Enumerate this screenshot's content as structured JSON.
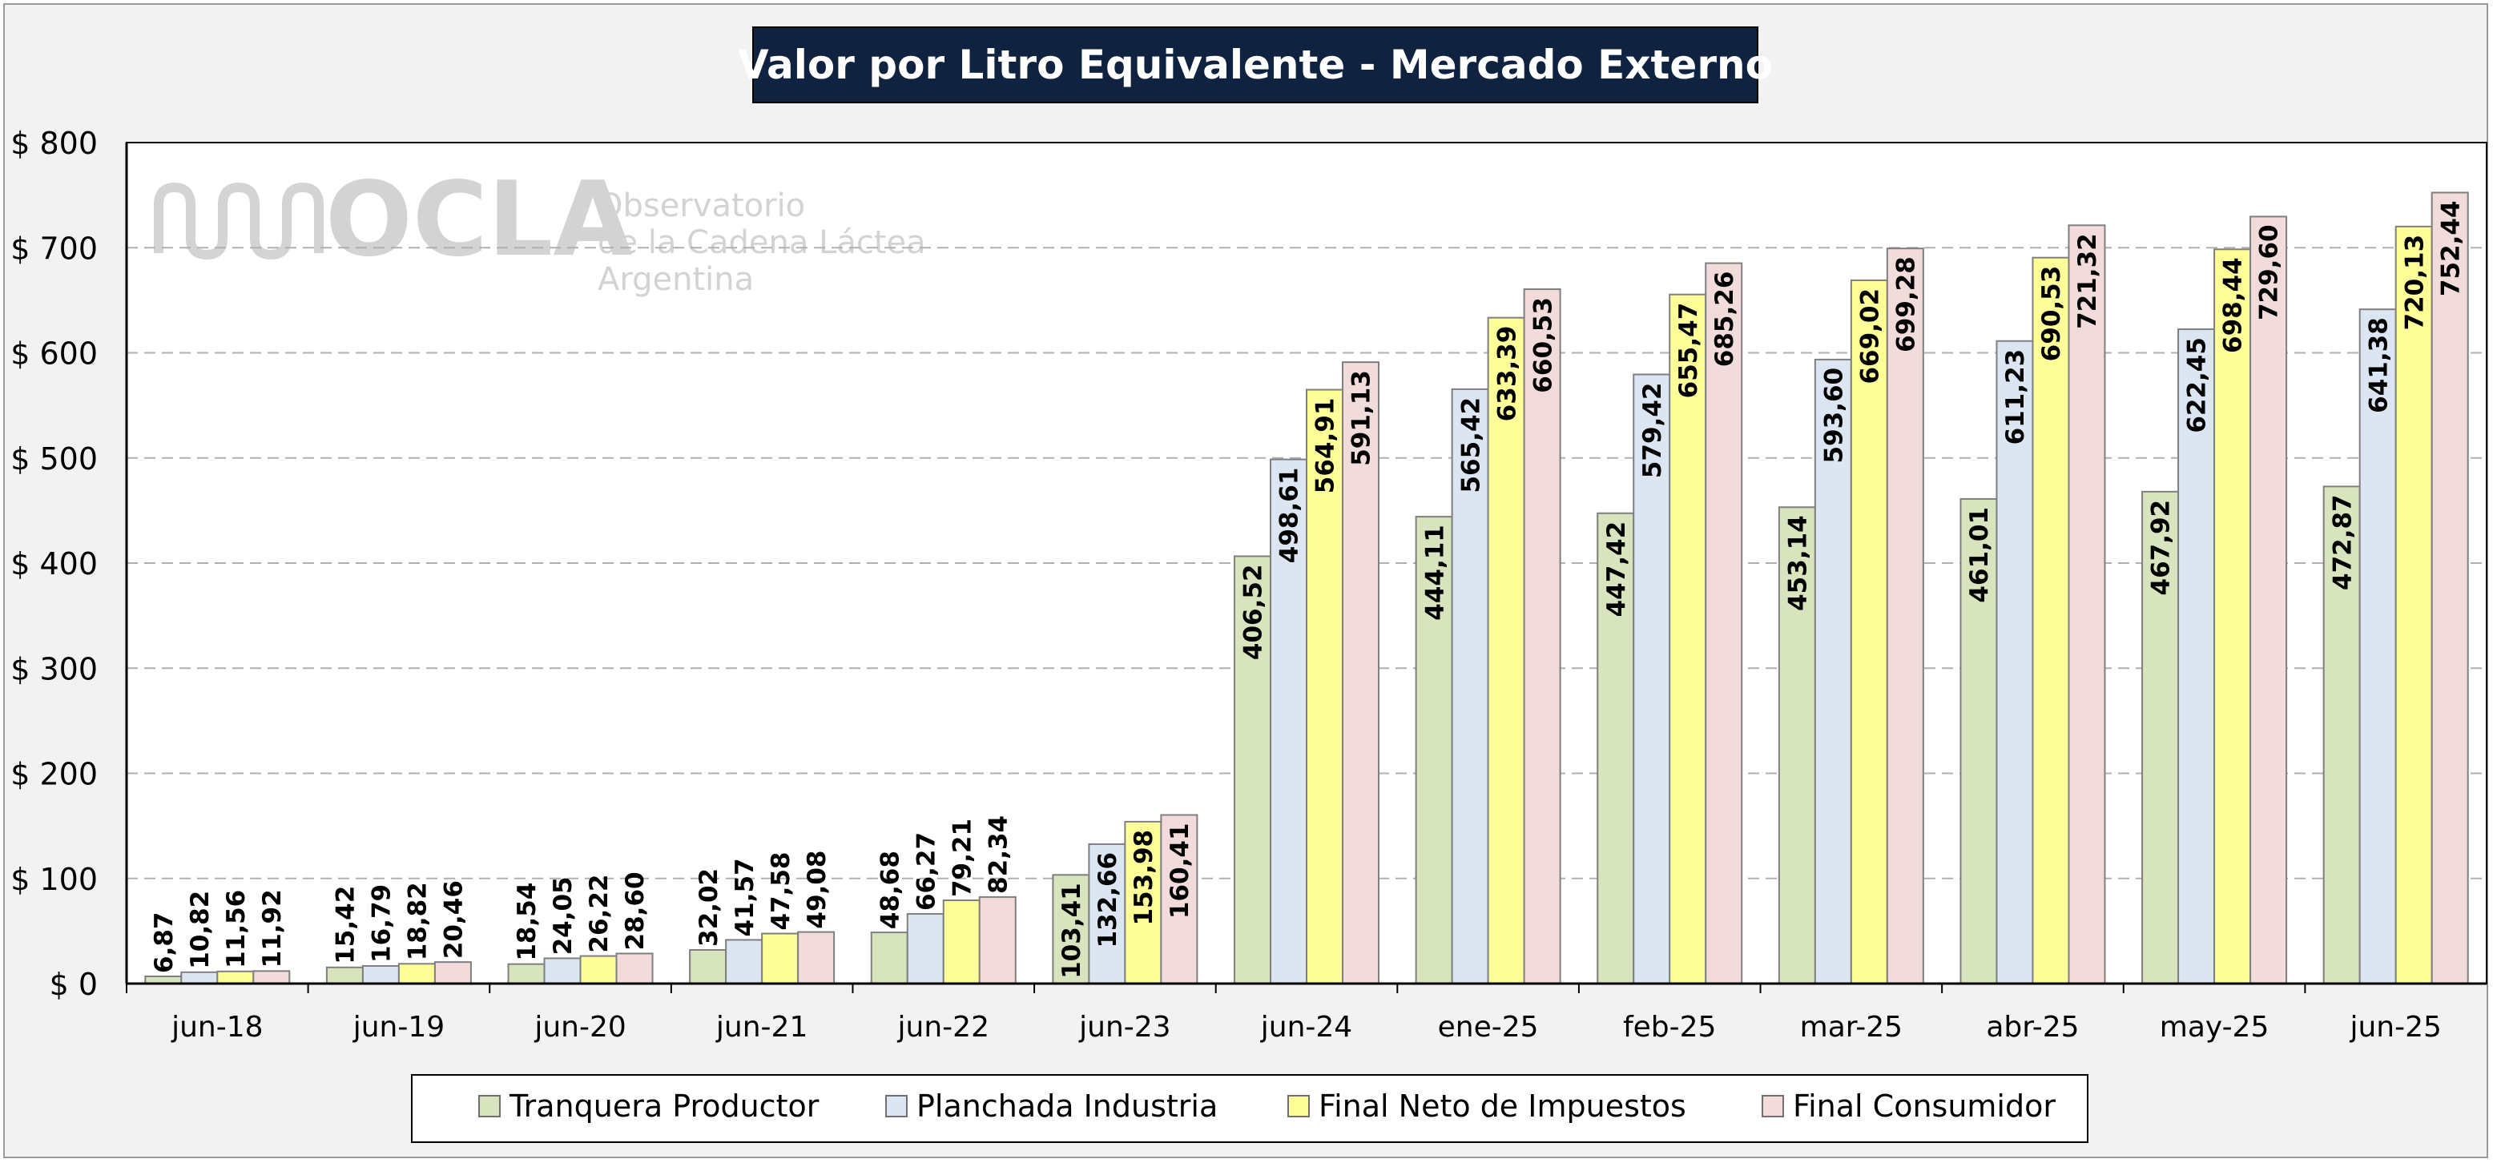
{
  "chart_data": {
    "type": "bar",
    "title": "Valor por Litro Equivalente - Mercado Externo",
    "categories": [
      "jun-18",
      "jun-19",
      "jun-20",
      "jun-21",
      "jun-22",
      "jun-23",
      "jun-24",
      "ene-25",
      "feb-25",
      "mar-25",
      "abr-25",
      "may-25",
      "jun-25"
    ],
    "series": [
      {
        "name": "Tranquera Productor",
        "color": "#d7e4bd",
        "values": [
          6.87,
          15.42,
          18.54,
          32.02,
          48.68,
          103.41,
          406.52,
          444.11,
          447.42,
          453.14,
          461.01,
          467.92,
          472.87
        ],
        "labels": [
          "6,87",
          "15,42",
          "18,54",
          "32,02",
          "48,68",
          "103,41",
          "406,52",
          "444,11",
          "447,42",
          "453,14",
          "461,01",
          "467,92",
          "472,87"
        ]
      },
      {
        "name": "Planchada Industria",
        "color": "#dce6f2",
        "values": [
          10.82,
          16.79,
          24.05,
          41.57,
          66.27,
          132.66,
          498.61,
          565.42,
          579.42,
          593.6,
          611.23,
          622.45,
          641.38
        ],
        "labels": [
          "10,82",
          "16,79",
          "24,05",
          "41,57",
          "66,27",
          "132,66",
          "498,61",
          "565,42",
          "579,42",
          "593,60",
          "611,23",
          "622,45",
          "641,38"
        ]
      },
      {
        "name": "Final Neto de Impuestos",
        "color": "#ffff99",
        "values": [
          11.56,
          18.82,
          26.22,
          47.58,
          79.21,
          153.98,
          564.91,
          633.39,
          655.47,
          669.02,
          690.53,
          698.44,
          720.13
        ],
        "labels": [
          "11,56",
          "18,82",
          "26,22",
          "47,58",
          "79,21",
          "153,98",
          "564,91",
          "633,39",
          "655,47",
          "669,02",
          "690,53",
          "698,44",
          "720,13"
        ]
      },
      {
        "name": "Final Consumidor",
        "color": "#f2dcdb",
        "values": [
          11.92,
          20.46,
          28.6,
          49.08,
          82.34,
          160.41,
          591.13,
          660.53,
          685.26,
          699.28,
          721.32,
          729.6,
          752.44
        ],
        "labels": [
          "11,92",
          "20,46",
          "28,60",
          "49,08",
          "82,34",
          "160,41",
          "591,13",
          "660,53",
          "685,26",
          "699,28",
          "721,32",
          "729,60",
          "752,44"
        ]
      }
    ],
    "ylim": [
      0,
      800
    ],
    "yticks": [
      0,
      100,
      200,
      300,
      400,
      500,
      600,
      700,
      800
    ],
    "ytick_labels": [
      "$ 0",
      "$ 100",
      "$ 200",
      "$ 300",
      "$ 400",
      "$ 500",
      "$ 600",
      "$ 700",
      "$ 800"
    ],
    "grid": true,
    "legend_position": "bottom"
  },
  "watermark": {
    "logo": "OCLA",
    "line1": "Observatorio",
    "line2": "de la Cadena Láctea",
    "line3": "Argentina"
  },
  "colors": {
    "title_bg": "#0f2340",
    "title_fg": "#ffffff",
    "plot_bg": "#ffffff",
    "page_bg": "#f2f2f2",
    "grid": "#b0b0b0",
    "bar_stroke": "#7f7f7f",
    "watermark": "#cfcfcf"
  }
}
